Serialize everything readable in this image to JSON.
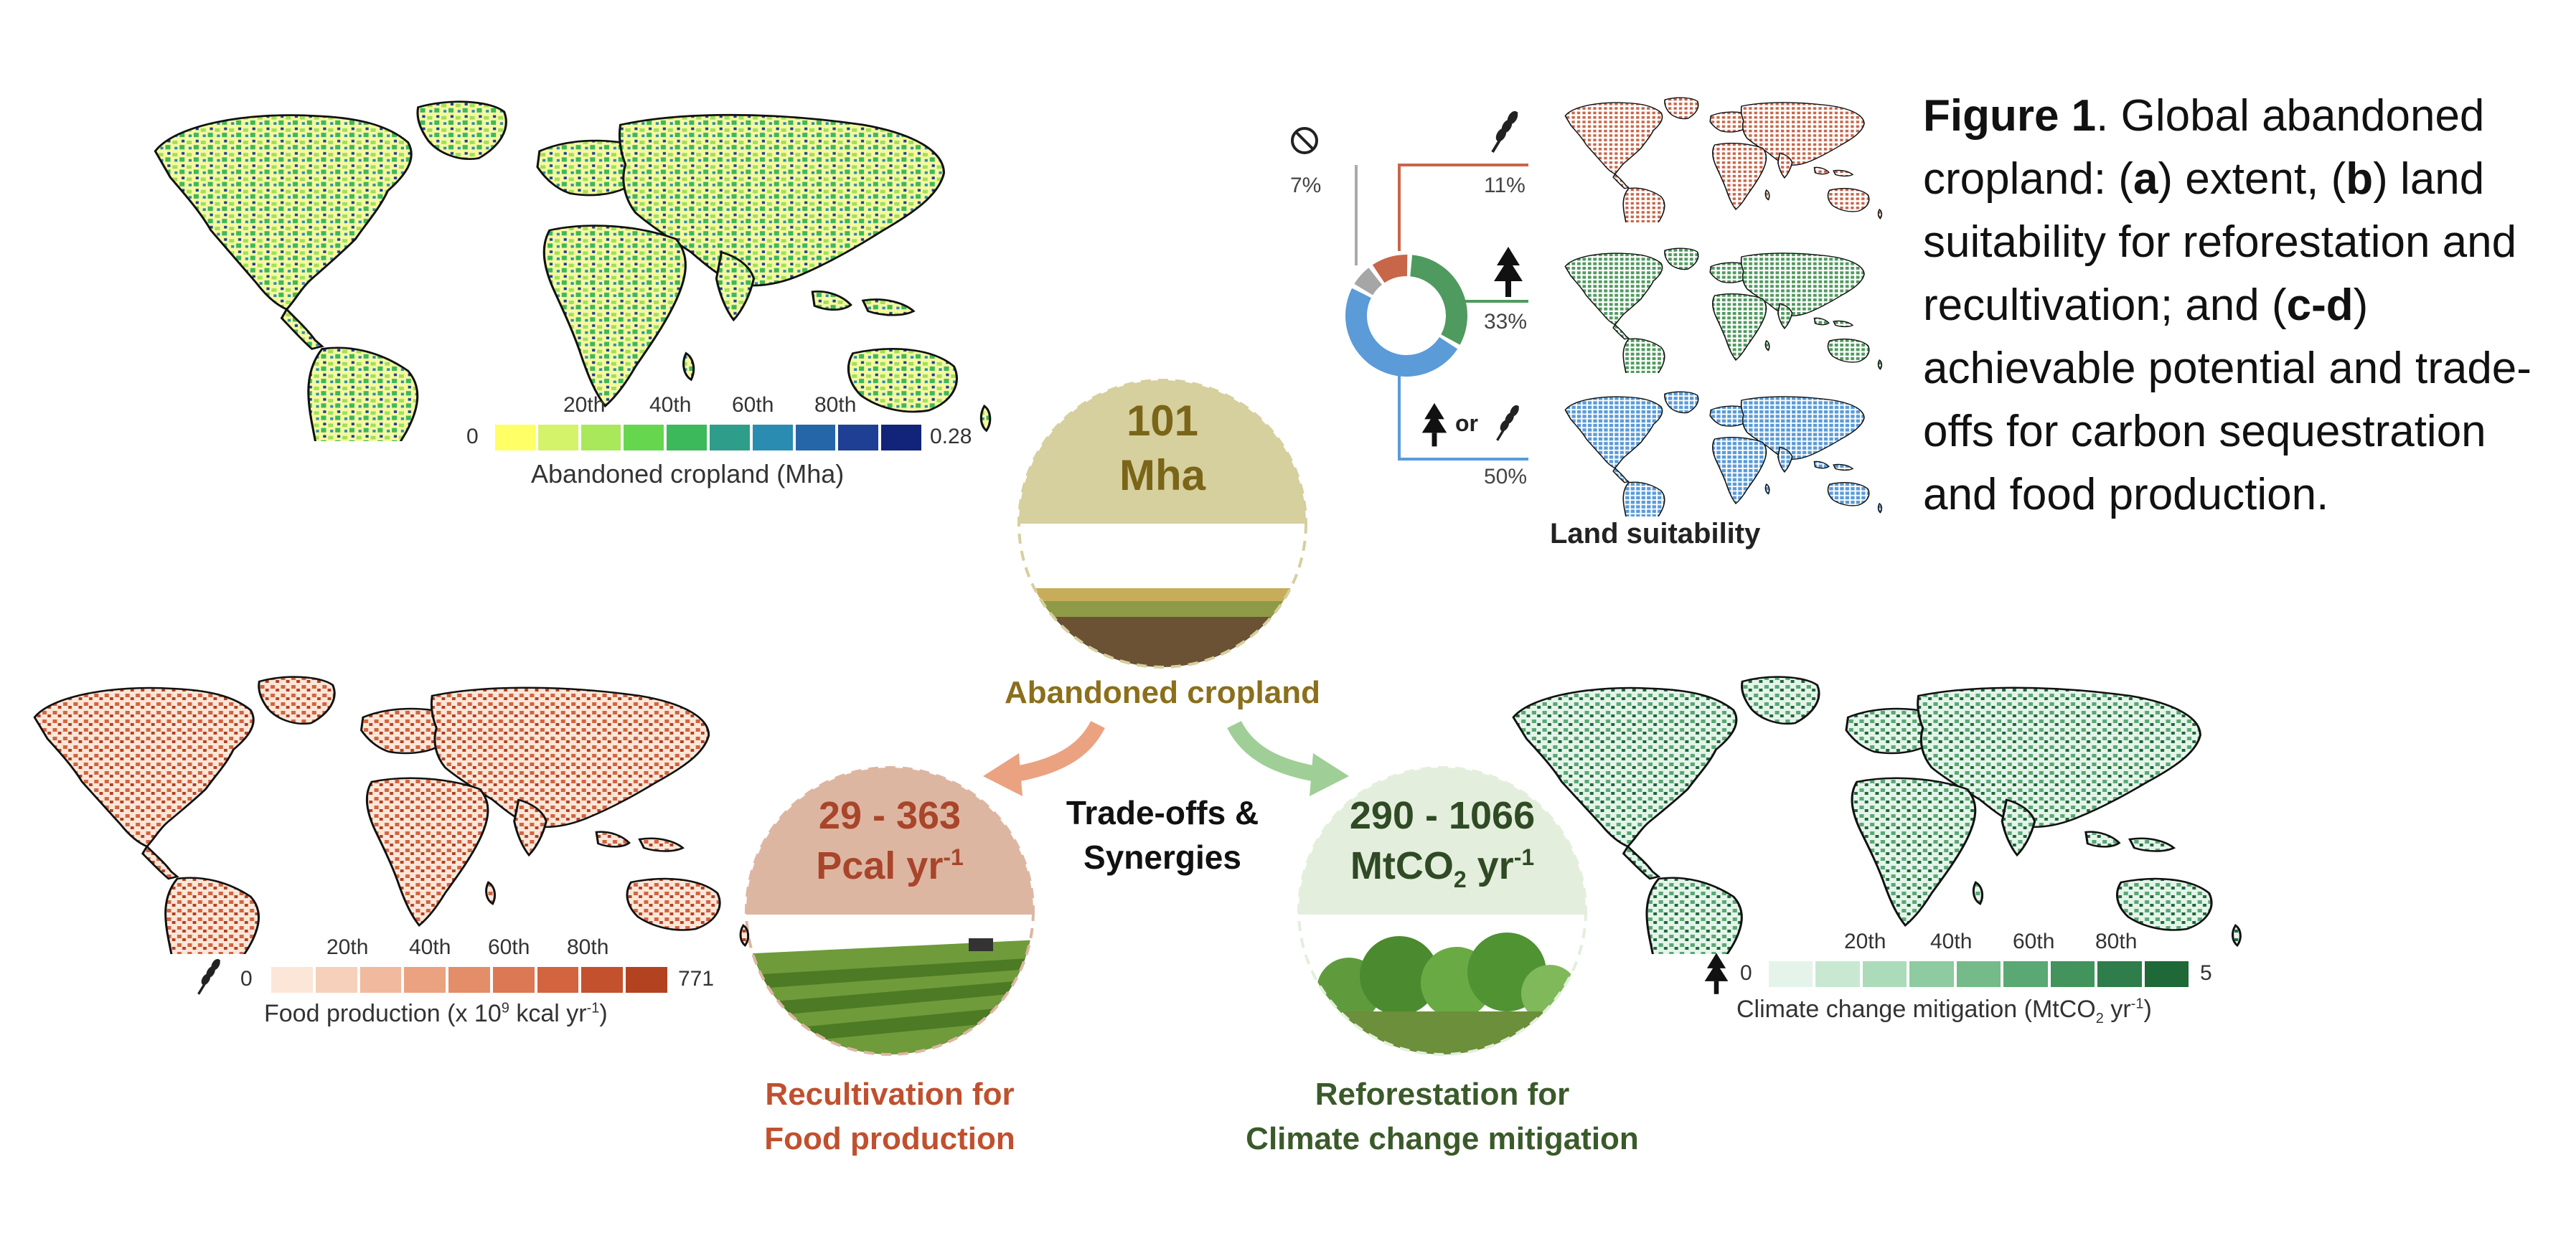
{
  "caption": {
    "fig": "Figure 1",
    "t1": ". Global abandoned cropland: (",
    "a": "a",
    "t2": ") extent, (",
    "b": "b",
    "t3": ") land suitability for reforestation and recultivation; and (",
    "cd": "c-d",
    "t4": ") achievable potential and trade-offs for carbon sequestration and food production."
  },
  "panel_a": {
    "legend_min": "0",
    "legend_max": "0.28",
    "ticks": [
      "20th",
      "40th",
      "60th",
      "80th"
    ],
    "title": "Abandoned cropland (Mha)",
    "colors": [
      "#ffff66",
      "#d4f26a",
      "#a8e85a",
      "#66d64f",
      "#3cb95a",
      "#2e9e8a",
      "#2a8cb0",
      "#2566a8",
      "#1e3f94",
      "#12237a"
    ]
  },
  "panel_b": {
    "title": "Land suitability",
    "none_pct": "7%",
    "food_pct": "11%",
    "forest_pct": "33%",
    "either_pct": "50%",
    "or_word": "or",
    "donut": [
      {
        "label": "Food",
        "value": 11,
        "color": "#c8664a"
      },
      {
        "label": "Forest",
        "value": 33,
        "color": "#4f9a5e"
      },
      {
        "label": "Either",
        "value": 50,
        "color": "#5a9bd8"
      },
      {
        "label": "None",
        "value": 7,
        "color": "#a6a6a6"
      }
    ]
  },
  "center": {
    "value_line1": "101",
    "value_line2": "Mha",
    "label": "Abandoned cropland",
    "tradeoff_line1": "Trade-offs &",
    "tradeoff_line2": "Synergies"
  },
  "food": {
    "value_line1": "29 - 363",
    "value_line2": "Pcal yr",
    "value_sup": "-1",
    "title_line1": "Recultivation for",
    "title_line2": "Food production",
    "legend_min": "0",
    "legend_max": "771",
    "ticks": [
      "20th",
      "40th",
      "60th",
      "80th"
    ],
    "legend_title_pre": "Food production (x 10",
    "legend_title_sup": "9",
    "legend_title_post": " kcal yr",
    "legend_title_sup2": "-1",
    "legend_title_end": ")",
    "colors": [
      "#fbe6d8",
      "#f6d0bb",
      "#f1b99d",
      "#eba281",
      "#e48d69",
      "#dc7853",
      "#d2643f",
      "#c3512e",
      "#b34221"
    ]
  },
  "carbon": {
    "value_line1": "290 - 1066",
    "value_line2a": "MtCO",
    "value_sub": "2",
    "value_line2b": " yr",
    "value_sup": "-1",
    "title_line1": "Reforestation for",
    "title_line2": "Climate change mitigation",
    "legend_min": "0",
    "legend_max": "5",
    "ticks": [
      "20th",
      "40th",
      "60th",
      "80th"
    ],
    "legend_title_pre": "Climate change mitigation (MtCO",
    "legend_title_sub": "2",
    "legend_title_post": " yr",
    "legend_title_sup": "-1",
    "legend_title_end": ")",
    "colors": [
      "#e4f4ea",
      "#c8e8d2",
      "#acdbba",
      "#8ecba0",
      "#74bb89",
      "#5aa873",
      "#43935d",
      "#2f7d4a",
      "#1f6838"
    ]
  }
}
